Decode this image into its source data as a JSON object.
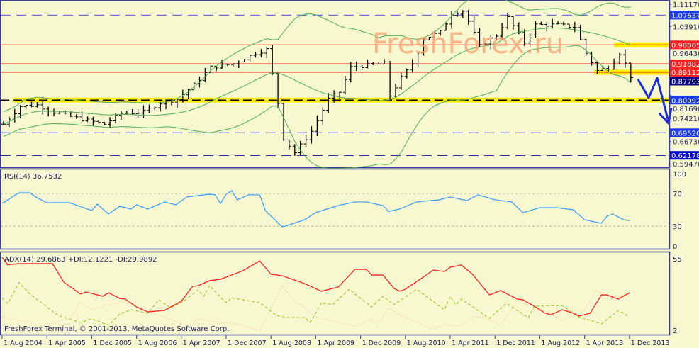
{
  "watermark": "FreshForex.ru",
  "copyright": "FreshForex Terminal, © 2001-2013, MetaQuotes Software Corp.",
  "colors": {
    "background": "#f8f8d0",
    "frame": "#3a3a9a",
    "bars": "#000000",
    "bollinger": "#4caf50",
    "support": "#ffee00",
    "rsi": "#3399ff",
    "adx": "#ff2020",
    "plus_di": "#99cc33",
    "minus_di": "#f5c8a8",
    "arrow": "#1a2ee0",
    "red_level": "#ff2020",
    "blue_level": "#3030e0"
  },
  "chart_data": [
    {
      "type": "ohlc",
      "panel": "main",
      "price_axis_ticks": [
        "1.11170",
        "1.03910",
        "0.96430",
        "0.81690",
        "0.74210",
        "0.66730",
        "0.59470"
      ],
      "ylim": [
        0.5947,
        1.1117
      ],
      "current_price": {
        "value": 0.87793,
        "label": "0.87793"
      },
      "levels": [
        {
          "value": 1.07637,
          "label": "1.07637",
          "style": "dashed",
          "color": "blue"
        },
        {
          "value": 0.98005,
          "label": "0.98005",
          "style": "solid",
          "color": "red",
          "highlight": "yellow"
        },
        {
          "value": 0.91882,
          "label": "0.91882",
          "style": "solid",
          "color": "red"
        },
        {
          "value": 0.89112,
          "label": "0.89112",
          "style": "solid",
          "color": "red",
          "highlight": "yellow"
        },
        {
          "value": 0.80092,
          "label": "0.80092",
          "style": "dashed-black",
          "color": "blue",
          "highlight": "yellow"
        },
        {
          "value": 0.6952,
          "label": "0.69520",
          "style": "dashed",
          "color": "blue"
        },
        {
          "value": 0.62178,
          "label": "0.62178",
          "style": "dashed",
          "color": "navy"
        }
      ],
      "closes": [
        [
          "Aug 2004",
          0.723
        ],
        [
          "Nov 2004",
          0.781
        ],
        [
          "Feb 2005",
          0.785
        ],
        [
          "May 2005",
          0.762
        ],
        [
          "Oct 2005",
          0.739
        ],
        [
          "Feb 2006",
          0.723
        ],
        [
          "May 2006",
          0.758
        ],
        [
          "Sep 2006",
          0.762
        ],
        [
          "Dec 2006",
          0.792
        ],
        [
          "Mar 2007",
          0.804
        ],
        [
          "Jun 2007",
          0.85
        ],
        [
          "Sep 2007",
          0.907
        ],
        [
          "Jan 2008",
          0.919
        ],
        [
          "May 2008",
          0.953
        ],
        [
          "Jul 2008",
          0.965
        ],
        [
          "Aug 2008",
          0.884
        ],
        [
          "Sep 2008",
          0.792
        ],
        [
          "Oct 2008",
          0.677
        ],
        [
          "Dec 2008",
          0.631
        ],
        [
          "Mar 2009",
          0.7
        ],
        [
          "Jun 2009",
          0.804
        ],
        [
          "Aug 2009",
          0.827
        ],
        [
          "Oct 2009",
          0.907
        ],
        [
          "Jan 2010",
          0.914
        ],
        [
          "Apr 2010",
          0.919
        ],
        [
          "May 2010",
          0.815
        ],
        [
          "Jul 2010",
          0.873
        ],
        [
          "Sep 2010",
          0.919
        ],
        [
          "Nov 2010",
          0.999
        ],
        [
          "Feb 2011",
          1.022
        ],
        [
          "Apr 2011",
          1.08
        ],
        [
          "Jun 2011",
          1.091
        ],
        [
          "Jul 2011",
          1.057
        ],
        [
          "Sep 2011",
          0.976
        ],
        [
          "Dec 2011",
          1.011
        ],
        [
          "Feb 2012",
          1.068
        ],
        [
          "May 2012",
          0.988
        ],
        [
          "Jul 2012",
          1.045
        ],
        [
          "Nov 2012",
          1.045
        ],
        [
          "Feb 2013",
          1.038
        ],
        [
          "Apr 2013",
          0.953
        ],
        [
          "Jun 2013",
          0.896
        ],
        [
          "Aug 2013",
          0.907
        ],
        [
          "Oct 2013",
          0.953
        ],
        [
          "Nov 2013",
          0.919
        ],
        [
          "Dec 2013",
          0.878
        ]
      ],
      "overlay": "Bollinger Bands",
      "annotation": "blue arrow projecting decline toward 0.80092 and 0.74210"
    },
    {
      "type": "line",
      "panel": "rsi",
      "title": "RSI(14) 36.7532",
      "ylim": [
        0,
        100
      ],
      "y_ticks": [
        "100",
        "70",
        "30",
        "0"
      ],
      "levels": [
        70,
        30
      ],
      "values": [
        [
          "Aug 2004",
          57.8
        ],
        [
          "Nov 2004",
          70.9
        ],
        [
          "Jan 2005",
          70.9
        ],
        [
          "Feb 2005",
          65.7
        ],
        [
          "Apr 2005",
          58.7
        ],
        [
          "Aug 2005",
          58.7
        ],
        [
          "Dec 2005",
          49.1
        ],
        [
          "Jan 2006",
          57
        ],
        [
          "Mar 2006",
          44.8
        ],
        [
          "May 2006",
          54.3
        ],
        [
          "Jul 2006",
          50.9
        ],
        [
          "Aug 2006",
          56.1
        ],
        [
          "Oct 2006",
          50.9
        ],
        [
          "Jan 2007",
          59.6
        ],
        [
          "Mar 2007",
          56.1
        ],
        [
          "May 2007",
          65.7
        ],
        [
          "Sep 2007",
          69.1
        ],
        [
          "Oct 2007",
          68.3
        ],
        [
          "Nov 2007",
          57.8
        ],
        [
          "Dec 2007",
          69.1
        ],
        [
          "Jan 2008",
          73.5
        ],
        [
          "Feb 2008",
          62.2
        ],
        [
          "Apr 2008",
          68.3
        ],
        [
          "Jun 2008",
          68.3
        ],
        [
          "Jul 2008",
          49.1
        ],
        [
          "Oct 2008",
          29.1
        ],
        [
          "Nov 2008",
          30.9
        ],
        [
          "Feb 2009",
          37.8
        ],
        [
          "Apr 2009",
          46.5
        ],
        [
          "Jun 2009",
          50.9
        ],
        [
          "Aug 2009",
          55.2
        ],
        [
          "Nov 2009",
          59.6
        ],
        [
          "Jan 2010",
          59.6
        ],
        [
          "Apr 2010",
          55.2
        ],
        [
          "May 2010",
          48
        ],
        [
          "Jul 2010",
          50.9
        ],
        [
          "Oct 2010",
          59.6
        ],
        [
          "Feb 2011",
          62.2
        ],
        [
          "Apr 2011",
          65.7
        ],
        [
          "Jul 2011",
          61.3
        ],
        [
          "Sep 2011",
          68.3
        ],
        [
          "Dec 2011",
          62.2
        ],
        [
          "Mar 2012",
          59.6
        ],
        [
          "May 2012",
          46.5
        ],
        [
          "Aug 2012",
          52.6
        ],
        [
          "Nov 2012",
          52.6
        ],
        [
          "Feb 2013",
          50
        ],
        [
          "Apr 2013",
          37.8
        ],
        [
          "Jul 2013",
          33.5
        ],
        [
          "Aug 2013",
          42.2
        ],
        [
          "Sep 2013",
          44.8
        ],
        [
          "Nov 2013",
          37.8
        ],
        [
          "Dec 2013",
          36.75
        ]
      ]
    },
    {
      "type": "line",
      "panel": "adx",
      "title": "ADX(14) 29.6863 +DI:12.1221 -DI:29.9892",
      "ylim": [
        2,
        55
      ],
      "y_ticks": [
        "55",
        "2"
      ],
      "series": [
        {
          "name": "ADX",
          "values": [
            [
              "Aug 2004",
              56
            ],
            [
              "Sep 2004",
              50.5
            ],
            [
              "Nov 2004",
              51.3
            ],
            [
              "May 2005",
              51.3
            ],
            [
              "Jul 2005",
              37.7
            ],
            [
              "Oct 2005",
              28.8
            ],
            [
              "Nov 2005",
              30.3
            ],
            [
              "Feb 2006",
              27.2
            ],
            [
              "Mar 2006",
              29.8
            ],
            [
              "May 2006",
              25.6
            ],
            [
              "Jun 2006",
              25.1
            ],
            [
              "Aug 2006",
              19.3
            ],
            [
              "Oct 2006",
              15.6
            ],
            [
              "Jan 2007",
              16.7
            ],
            [
              "Apr 2007",
              23.5
            ],
            [
              "Jun 2007",
              34.5
            ],
            [
              "Jul 2007",
              35
            ],
            [
              "Sep 2007",
              38.7
            ],
            [
              "Nov 2007",
              39.8
            ],
            [
              "Mar 2008",
              46.1
            ],
            [
              "Jun 2008",
              53.4
            ],
            [
              "Aug 2008",
              43.5
            ],
            [
              "Oct 2008",
              42.4
            ],
            [
              "Feb 2009",
              36.6
            ],
            [
              "May 2009",
              30.9
            ],
            [
              "Aug 2009",
              34
            ],
            [
              "Nov 2009",
              47.1
            ],
            [
              "Jan 2010",
              47.1
            ],
            [
              "Feb 2010",
              42.9
            ],
            [
              "Apr 2010",
              42.9
            ],
            [
              "Jun 2010",
              33
            ],
            [
              "Jul 2010",
              30.9
            ],
            [
              "Aug 2010",
              32.4
            ],
            [
              "Nov 2010",
              40.8
            ],
            [
              "Jan 2011",
              46.6
            ],
            [
              "Mar 2011",
              45.5
            ],
            [
              "Apr 2011",
              48.7
            ],
            [
              "Jun 2011",
              50.3
            ],
            [
              "Aug 2011",
              43.5
            ],
            [
              "Nov 2011",
              28.2
            ],
            [
              "Jan 2012",
              31.4
            ],
            [
              "Apr 2012",
              25.1
            ],
            [
              "May 2012",
              24.6
            ],
            [
              "Jul 2012",
              19.8
            ],
            [
              "Sep 2012",
              14.6
            ],
            [
              "Oct 2012",
              13.5
            ],
            [
              "Dec 2012",
              17.2
            ],
            [
              "Feb 2013",
              14.6
            ],
            [
              "Mar 2013",
              12.5
            ],
            [
              "May 2013",
              14.6
            ],
            [
              "Jul 2013",
              28.2
            ],
            [
              "Aug 2013",
              28.2
            ],
            [
              "Oct 2013",
              25.1
            ],
            [
              "Dec 2013",
              29.69
            ]
          ]
        },
        {
          "name": "+DI",
          "values": [
            [
              "Aug 2004",
              26.1
            ],
            [
              "Sep 2004",
              21.9
            ],
            [
              "Nov 2004",
              37.2
            ],
            [
              "Jan 2005",
              28.8
            ],
            [
              "Mar 2005",
              22.4
            ],
            [
              "Jun 2005",
              13
            ],
            [
              "Oct 2005",
              7.8
            ],
            [
              "Dec 2005",
              10.4
            ],
            [
              "Mar 2006",
              5.7
            ],
            [
              "May 2006",
              14
            ],
            [
              "Jul 2006",
              17.2
            ],
            [
              "Oct 2006",
              14.6
            ],
            [
              "Dec 2006",
              24.6
            ],
            [
              "Feb 2007",
              18.8
            ],
            [
              "Apr 2007",
              22.4
            ],
            [
              "Jul 2007",
              31.9
            ],
            [
              "Aug 2007",
              27.2
            ],
            [
              "Sep 2007",
              35
            ],
            [
              "Dec 2007",
              22.4
            ],
            [
              "Jan 2008",
              26.1
            ],
            [
              "Jun 2008",
              22.4
            ],
            [
              "Sep 2008",
              13
            ],
            [
              "Nov 2008",
              11.4
            ],
            [
              "Feb 2009",
              11.4
            ],
            [
              "Mar 2009",
              7.8
            ],
            [
              "May 2009",
              22.4
            ],
            [
              "Jul 2009",
              20.9
            ],
            [
              "Oct 2009",
              32.4
            ],
            [
              "Nov 2009",
              28.8
            ],
            [
              "Feb 2010",
              19.3
            ],
            [
              "Apr 2010",
              27.2
            ],
            [
              "Jun 2010",
              20.9
            ],
            [
              "Oct 2010",
              32.4
            ],
            [
              "Mar 2011",
              17.2
            ],
            [
              "Apr 2011",
              27.2
            ],
            [
              "May 2011",
              20.9
            ],
            [
              "Jun 2011",
              25.1
            ],
            [
              "Nov 2011",
              10.9
            ],
            [
              "Feb 2012",
              21.9
            ],
            [
              "Jun 2012",
              11.4
            ],
            [
              "Jul 2012",
              19.8
            ],
            [
              "Dec 2012",
              20.3
            ],
            [
              "Mar 2013",
              11.9
            ],
            [
              "Jul 2013",
              6.7
            ],
            [
              "Oct 2013",
              16.7
            ],
            [
              "Dec 2013",
              12.12
            ]
          ]
        },
        {
          "name": "-DI",
          "values": [
            [
              "Aug 2004",
              12
            ],
            [
              "Dec 2004",
              8.8
            ],
            [
              "Mar 2005",
              5.1
            ],
            [
              "Jun 2005",
              8.8
            ],
            [
              "Aug 2005",
              10.4
            ],
            [
              "Oct 2005",
              22.4
            ],
            [
              "Dec 2005",
              17.2
            ],
            [
              "Mar 2006",
              20.9
            ],
            [
              "Jun 2006",
              23.5
            ],
            [
              "Oct 2006",
              15.6
            ],
            [
              "Jan 2007",
              12
            ],
            [
              "May 2007",
              5.1
            ],
            [
              "Jul 2007",
              10.4
            ],
            [
              "Sep 2007",
              8.8
            ],
            [
              "Feb 2008",
              6.7
            ],
            [
              "Jun 2008",
              1.5
            ],
            [
              "Oct 2008",
              35
            ],
            [
              "Dec 2008",
              24.6
            ],
            [
              "Apr 2009",
              12
            ],
            [
              "Sep 2009",
              6.7
            ],
            [
              "Nov 2009",
              5.1
            ],
            [
              "Feb 2010",
              10.4
            ],
            [
              "Mar 2010",
              6.7
            ],
            [
              "May 2010",
              18.3
            ],
            [
              "Sep 2010",
              9.4
            ],
            [
              "Jan 2011",
              2.5
            ],
            [
              "Mar 2011",
              6.2
            ],
            [
              "Jun 2011",
              5.1
            ],
            [
              "Aug 2011",
              12
            ],
            [
              "Oct 2011",
              12
            ],
            [
              "Jan 2012",
              6.2
            ],
            [
              "Apr 2012",
              23.5
            ],
            [
              "Aug 2012",
              18.3
            ],
            [
              "Dec 2012",
              9.4
            ],
            [
              "Apr 2013",
              16.7
            ],
            [
              "Jun 2013",
              31.4
            ],
            [
              "Sep 2013",
              25.1
            ],
            [
              "Dec 2013",
              29.99
            ]
          ]
        }
      ]
    }
  ],
  "x_axis": {
    "labels": [
      "1 Aug 2004",
      "1 Apr 2005",
      "1 Dec 2005",
      "1 Aug 2006",
      "1 Apr 2007",
      "1 Dec 2007",
      "1 Aug 2008",
      "1 Apr 2009",
      "1 Dec 2009",
      "1 Aug 2010",
      "1 Apr 2011",
      "1 Dec 2011",
      "1 Aug 2012",
      "1 Apr 2013",
      "1 Dec 2013"
    ]
  }
}
